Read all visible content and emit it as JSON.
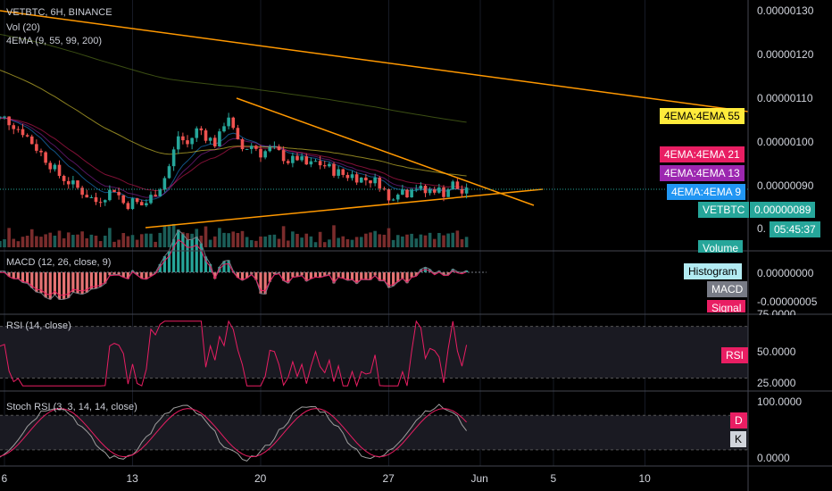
{
  "chart_data": {
    "type": "candlestick",
    "symbol_title": "VETBTC, 6H, BINANCE",
    "price_axis": {
      "ticks": [
        "0.00000130",
        "0.00000120",
        "0.00000110",
        "0.00000100",
        "0.00000090"
      ],
      "range": [
        8.58e-07,
        1.325e-06
      ]
    },
    "indicators": {
      "volume": "Vol (20)",
      "ema": "4EMA (9, 55, 99, 200)",
      "macd": "MACD (12, 26, close, 9)",
      "rsi": "RSI (14, close)",
      "stoch": "Stoch RSI (3, 3, 14, 14, close)"
    },
    "price_tags": {
      "ema55": "4EMA:4EMA 55",
      "ema21": "4EMA:4EMA 21",
      "ema13": "4EMA:4EMA 13",
      "ema9": "4EMA:4EMA 9",
      "last_symbol": "VETBTC",
      "last_price": "0.00000089",
      "countdown": "05:45:37",
      "volume": "Volume",
      "partial_tick": "0."
    },
    "macd_axis": {
      "ticks": [
        "0.00000000",
        "-0.00000005"
      ],
      "tags": [
        "Histogram",
        "MACD",
        "Signal"
      ]
    },
    "rsi_axis": {
      "ticks": [
        "75.0000",
        "50.0000",
        "25.0000"
      ],
      "tag": "RSI",
      "ylim": [
        20,
        78
      ]
    },
    "stoch_axis": {
      "ticks": [
        "100.0000",
        "0.0000"
      ],
      "tags": [
        "D",
        "K"
      ],
      "ylim": [
        -5,
        110
      ]
    },
    "x_ticks": [
      {
        "label": "6",
        "day": 6
      },
      {
        "label": "13",
        "day": 13
      },
      {
        "label": "20",
        "day": 20
      },
      {
        "label": "27",
        "day": 27
      },
      {
        "label": "Jun",
        "day": 32
      },
      {
        "label": "5",
        "day": 36
      },
      {
        "label": "10",
        "day": 41
      }
    ],
    "close_points": [
      [
        6,
        1.06
      ],
      [
        7,
        1.03
      ],
      [
        8,
        0.98
      ],
      [
        9,
        0.93
      ],
      [
        10,
        0.9
      ],
      [
        11,
        0.87
      ],
      [
        12,
        0.9
      ],
      [
        12.6,
        0.86
      ],
      [
        13,
        0.87
      ],
      [
        13.6,
        0.86
      ],
      [
        14,
        0.88
      ],
      [
        14.6,
        0.91
      ],
      [
        15,
        0.95
      ],
      [
        15.5,
        1.02
      ],
      [
        16,
        1.0
      ],
      [
        16.6,
        1.04
      ],
      [
        17,
        1.02
      ],
      [
        17.6,
        1.0
      ],
      [
        18,
        1.05
      ],
      [
        18.3,
        1.07
      ],
      [
        18.6,
        1.01
      ],
      [
        19,
        0.99
      ],
      [
        19.6,
        1.0
      ],
      [
        20,
        0.98
      ],
      [
        20.6,
        0.99
      ],
      [
        21,
        0.98
      ],
      [
        21.6,
        0.96
      ],
      [
        22,
        0.97
      ],
      [
        22.6,
        0.95
      ],
      [
        23,
        0.96
      ],
      [
        23.6,
        0.95
      ],
      [
        24,
        0.94
      ],
      [
        24.6,
        0.93
      ],
      [
        25,
        0.93
      ],
      [
        25.6,
        0.92
      ],
      [
        26,
        0.92
      ],
      [
        26.6,
        0.91
      ],
      [
        27,
        0.87
      ],
      [
        27.3,
        0.89
      ],
      [
        27.6,
        0.9
      ],
      [
        28,
        0.89
      ],
      [
        28.3,
        0.91
      ],
      [
        28.6,
        0.9
      ],
      [
        29,
        0.89
      ],
      [
        29.5,
        0.9
      ],
      [
        30,
        0.89
      ],
      [
        30.5,
        0.91
      ],
      [
        31,
        0.89
      ],
      [
        31.4,
        0.89
      ]
    ]
  }
}
